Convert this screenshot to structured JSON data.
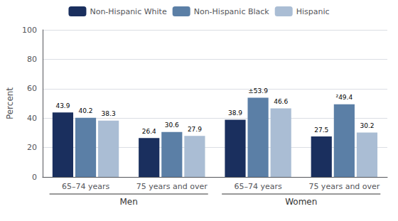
{
  "chart_data": {
    "type": "bar",
    "categories": [
      "65–74 years",
      "75 years and over",
      "65–74 years",
      "75 years and over"
    ],
    "series": [
      {
        "name": "Non-Hispanic White",
        "color": "#1a2f5e",
        "values": [
          43.9,
          26.4,
          38.9,
          27.5
        ]
      },
      {
        "name": "Non-Hispanic Black",
        "color": "#5b7fa6",
        "values": [
          40.2,
          30.6,
          53.9,
          49.4
        ],
        "value_labels": [
          "40.2",
          "30.6",
          "±53.9",
          "²49.4"
        ]
      },
      {
        "name": "Hispanic",
        "color": "#aabdd4",
        "values": [
          38.3,
          27.9,
          46.6,
          30.2
        ]
      }
    ],
    "ylabel": "Percent",
    "ylim": [
      0,
      100
    ],
    "yticks": [
      0,
      20,
      40,
      60,
      80,
      100
    ],
    "grid": true,
    "legend": "top",
    "data_labels": true,
    "annotations": [
      "Men",
      "Women"
    ]
  }
}
